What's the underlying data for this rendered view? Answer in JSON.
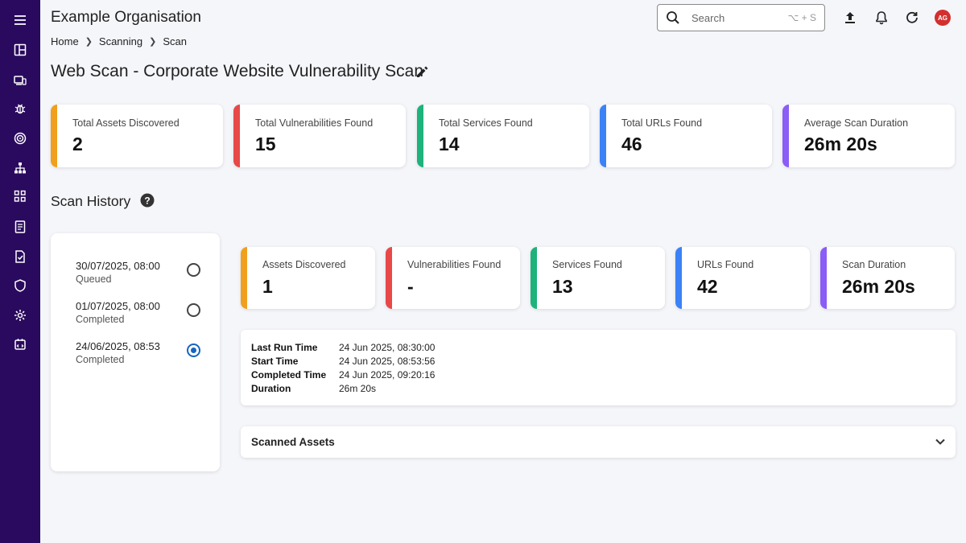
{
  "header": {
    "org_title": "Example Organisation",
    "search_placeholder": "Search",
    "search_shortcut": "⌥ + S",
    "avatar_initials": "AG"
  },
  "breadcrumb": [
    "Home",
    "Scanning",
    "Scan"
  ],
  "page_title": "Web Scan - Corporate Website Vulnerability Scan",
  "sidebar_icons": [
    "menu-icon",
    "dashboard-icon",
    "devices-icon",
    "bug-icon",
    "target-icon",
    "hierarchy-icon",
    "apps-icon",
    "book-icon",
    "report-icon",
    "shield-icon",
    "settings-icon",
    "integration-icon"
  ],
  "totals": [
    {
      "label": "Total Assets Discovered",
      "value": "2",
      "color": "#f0a01c"
    },
    {
      "label": "Total Vulnerabilities Found",
      "value": "15",
      "color": "#e84848"
    },
    {
      "label": "Total Services Found",
      "value": "14",
      "color": "#1db37a"
    },
    {
      "label": "Total URLs Found",
      "value": "46",
      "color": "#3b82f6"
    },
    {
      "label": "Average Scan Duration",
      "value": "26m 20s",
      "color": "#8b5cf6"
    }
  ],
  "scan_history": {
    "title": "Scan History",
    "items": [
      {
        "date": "30/07/2025, 08:00",
        "status": "Queued",
        "selected": false
      },
      {
        "date": "01/07/2025, 08:00",
        "status": "Completed",
        "selected": false
      },
      {
        "date": "24/06/2025, 08:53",
        "status": "Completed",
        "selected": true
      }
    ]
  },
  "selected_scan": {
    "stats": [
      {
        "label": "Assets Discovered",
        "value": "1",
        "color": "#f0a01c"
      },
      {
        "label": "Vulnerabilities Found",
        "value": "-",
        "color": "#e84848"
      },
      {
        "label": "Services Found",
        "value": "13",
        "color": "#1db37a"
      },
      {
        "label": "URLs Found",
        "value": "42",
        "color": "#3b82f6"
      },
      {
        "label": "Scan Duration",
        "value": "26m 20s",
        "color": "#8b5cf6"
      }
    ],
    "details": [
      {
        "key": "Last Run Time",
        "value": "24 Jun 2025, 08:30:00"
      },
      {
        "key": "Start Time",
        "value": "24 Jun 2025, 08:53:56"
      },
      {
        "key": "Completed Time",
        "value": "24 Jun 2025, 09:20:16"
      },
      {
        "key": "Duration",
        "value": "26m 20s"
      }
    ],
    "scanned_assets_label": "Scanned Assets"
  }
}
